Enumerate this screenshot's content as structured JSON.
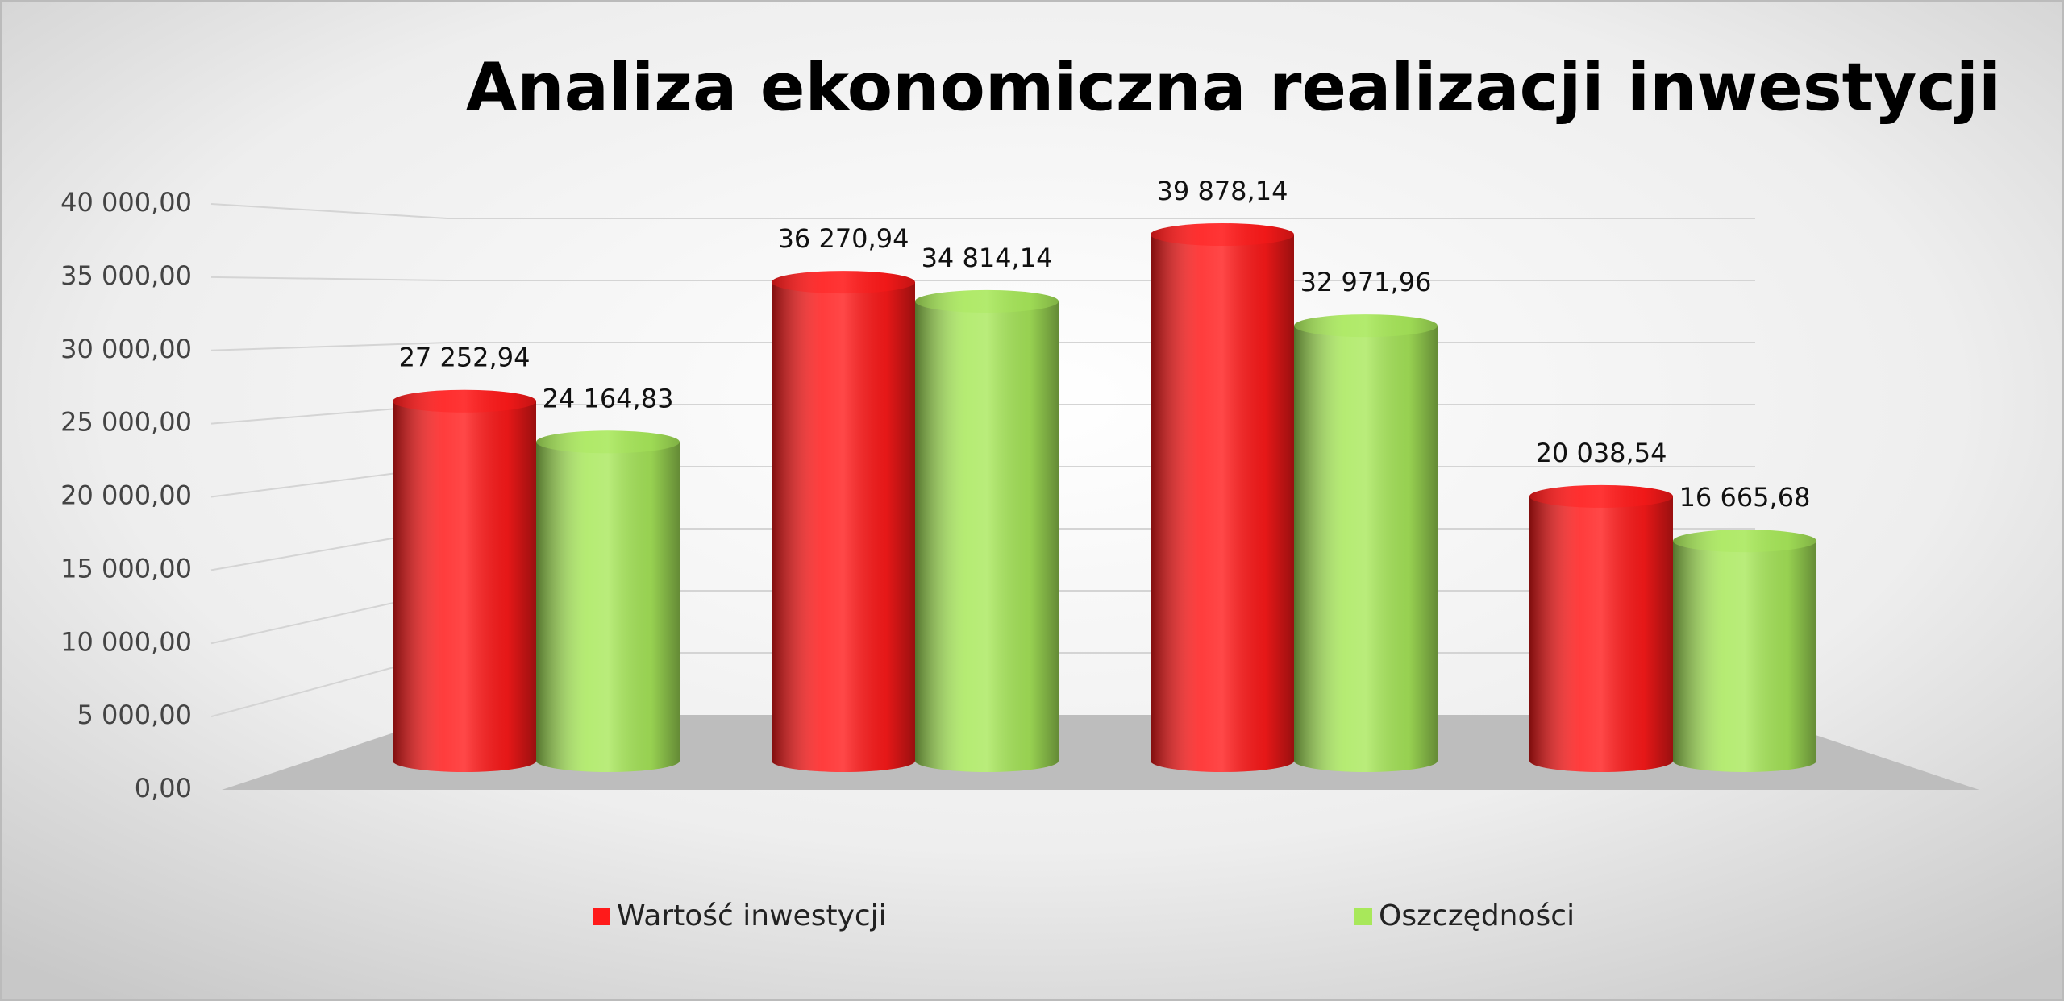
{
  "chart_data": {
    "type": "bar3d",
    "title": "Analiza ekonomiczna realizacji inwestycji",
    "categories": [
      null,
      null,
      null,
      null
    ],
    "series": [
      {
        "name": "Wartość inwestycji",
        "color": "#ff1a1a",
        "values": [
          27252.94,
          36270.94,
          39878.14,
          20038.54
        ],
        "value_labels": [
          "27 252,94",
          "36 270,94",
          "39 878,14",
          "20 038,54"
        ]
      },
      {
        "name": "Oszczędności",
        "color": "#a8e85a",
        "values": [
          24164.83,
          34814.14,
          32971.96,
          16665.68
        ],
        "value_labels": [
          "24 164,83",
          "34 814,14",
          "32 971,96",
          "16 665,68"
        ]
      }
    ],
    "ylim": [
      0,
      40000
    ],
    "yticks": [
      {
        "value": 0,
        "label": "0,00"
      },
      {
        "value": 5000,
        "label": "5 000,00"
      },
      {
        "value": 10000,
        "label": "10 000,00"
      },
      {
        "value": 15000,
        "label": "15 000,00"
      },
      {
        "value": 20000,
        "label": "20 000,00"
      },
      {
        "value": 25000,
        "label": "25 000,00"
      },
      {
        "value": 30000,
        "label": "30 000,00"
      },
      {
        "value": 35000,
        "label": "35 000,00"
      },
      {
        "value": 40000,
        "label": "40 000,00"
      }
    ],
    "grid": true,
    "legend": "bottom"
  }
}
